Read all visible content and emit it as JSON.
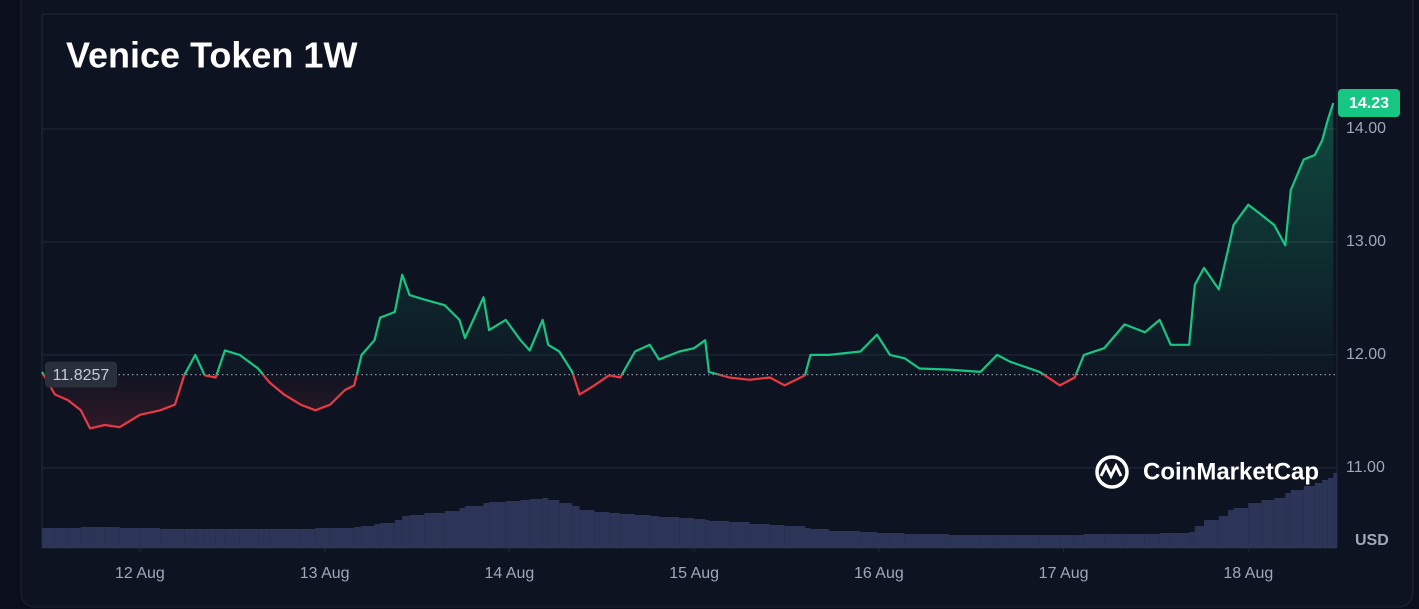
{
  "chart_data": {
    "type": "baseline-line",
    "title": "Venice Token 1W",
    "x": [
      11.47,
      11.54,
      11.61,
      11.68,
      11.73,
      11.81,
      11.89,
      12.0,
      12.11,
      12.19,
      12.24,
      12.3,
      12.35,
      12.41,
      12.46,
      12.54,
      12.64,
      12.7,
      12.78,
      12.87,
      12.95,
      13.03,
      13.11,
      13.16,
      13.2,
      13.27,
      13.3,
      13.38,
      13.42,
      13.46,
      13.54,
      13.65,
      13.73,
      13.76,
      13.86,
      13.89,
      13.98,
      14.06,
      14.11,
      14.18,
      14.21,
      14.27,
      14.34,
      14.38,
      14.46,
      14.54,
      14.6,
      14.68,
      14.76,
      14.81,
      14.92,
      15.0,
      15.06,
      15.08,
      15.19,
      15.3,
      15.41,
      15.49,
      15.6,
      15.63,
      15.73,
      15.9,
      15.99,
      16.06,
      16.14,
      16.22,
      16.38,
      16.55,
      16.64,
      16.71,
      16.87,
      16.98,
      17.06,
      17.11,
      17.22,
      17.33,
      17.44,
      17.52,
      17.58,
      17.68,
      17.71,
      17.76,
      17.84,
      17.89,
      17.92,
      18.0,
      18.07,
      18.14,
      18.2,
      18.23,
      18.3,
      18.36,
      18.4,
      18.43,
      18.46
    ],
    "values": [
      11.85,
      11.65,
      11.6,
      11.51,
      11.35,
      11.38,
      11.36,
      11.47,
      11.51,
      11.56,
      11.82,
      12.0,
      11.82,
      11.8,
      12.04,
      12.0,
      11.88,
      11.76,
      11.65,
      11.56,
      11.51,
      11.56,
      11.69,
      11.73,
      12.0,
      12.13,
      12.33,
      12.38,
      12.71,
      12.53,
      12.49,
      12.44,
      12.31,
      12.15,
      12.51,
      12.22,
      12.31,
      12.13,
      12.04,
      12.31,
      12.09,
      12.03,
      11.85,
      11.65,
      11.73,
      11.82,
      11.8,
      12.03,
      12.09,
      11.96,
      12.03,
      12.06,
      12.13,
      11.85,
      11.8,
      11.78,
      11.8,
      11.73,
      11.82,
      12.0,
      12.0,
      12.03,
      12.18,
      12.0,
      11.97,
      11.88,
      11.87,
      11.85,
      12.0,
      11.94,
      11.85,
      11.73,
      11.8,
      12.0,
      12.06,
      12.27,
      12.2,
      12.31,
      12.09,
      12.09,
      12.62,
      12.77,
      12.58,
      12.93,
      13.15,
      13.33,
      13.24,
      13.15,
      12.97,
      13.46,
      13.73,
      13.77,
      13.9,
      14.08,
      14.23
    ],
    "volume": [
      20,
      20,
      20,
      21,
      21,
      21,
      20,
      20,
      19,
      19,
      19,
      19,
      19,
      19,
      19,
      19,
      19,
      19,
      19,
      19,
      20,
      20,
      20,
      21,
      22,
      24,
      25,
      28,
      32,
      33,
      35,
      37,
      40,
      42,
      45,
      46,
      47,
      48,
      49,
      50,
      48,
      45,
      42,
      38,
      36,
      35,
      34,
      33,
      32,
      31,
      30,
      29,
      28,
      27,
      26,
      24,
      23,
      22,
      20,
      19,
      17,
      16,
      15,
      15,
      14,
      14,
      13,
      13,
      13,
      13,
      13,
      13,
      13,
      14,
      14,
      14,
      14,
      15,
      15,
      16,
      22,
      28,
      32,
      38,
      40,
      45,
      48,
      50,
      55,
      58,
      62,
      65,
      68,
      70,
      75
    ],
    "volume_ylim": [
      0,
      100
    ],
    "reference_value": 11.8257,
    "up_color": "#16c784",
    "down_color": "#ea3943",
    "volume_color": "#2c3557",
    "xlim": [
      11.47,
      18.48
    ],
    "xticks": [
      {
        "value": 12,
        "label": "12 Aug"
      },
      {
        "value": 13,
        "label": "13 Aug"
      },
      {
        "value": 14,
        "label": "14 Aug"
      },
      {
        "value": 15,
        "label": "15 Aug"
      },
      {
        "value": 16,
        "label": "16 Aug"
      },
      {
        "value": 17,
        "label": "17 Aug"
      },
      {
        "value": 18,
        "label": "18 Aug"
      }
    ],
    "ylim": [
      10.3,
      15.0
    ],
    "yticks": [
      {
        "value": 11,
        "label": "11.00"
      },
      {
        "value": 12,
        "label": "12.00"
      },
      {
        "value": 13,
        "label": "13.00"
      },
      {
        "value": 14,
        "label": "14.00"
      }
    ],
    "y_unit": "USD",
    "grid": true,
    "watermark": "CoinMarketCap"
  }
}
